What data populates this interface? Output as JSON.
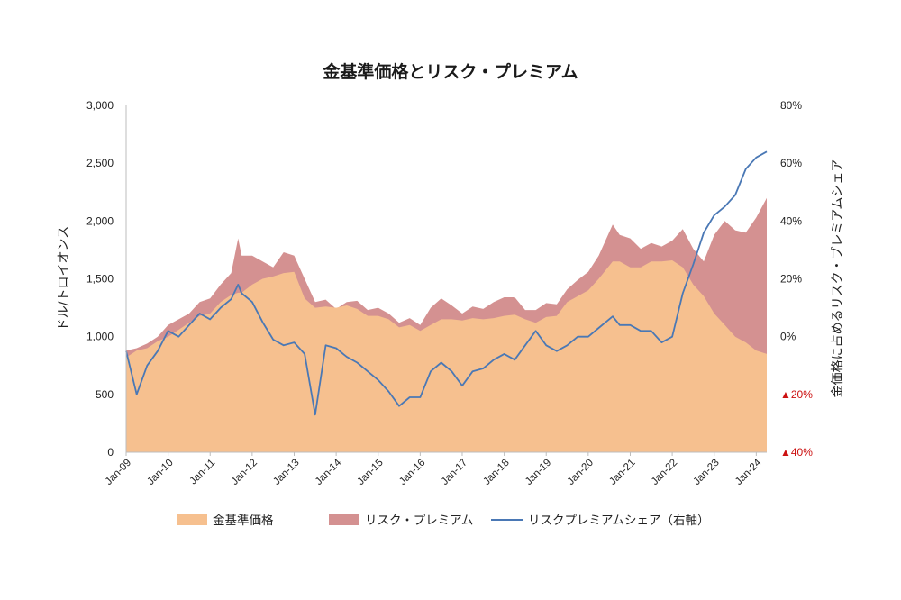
{
  "chart_data": {
    "type": "area",
    "title": "金基準価格とリスク・プレミアム",
    "ylabel_left": "ドル/トロイオンス",
    "ylabel_right": "金価格に占めるリスク・プレミアムシェア",
    "ylim_left": [
      0,
      3000
    ],
    "ylim_right": [
      -0.4,
      0.8
    ],
    "yticks_left": [
      "0",
      "500",
      "1,000",
      "1,500",
      "2,000",
      "2,500",
      "3,000"
    ],
    "yticks_right": [
      {
        "value": -0.4,
        "label": "▲40%",
        "negative": true
      },
      {
        "value": -0.2,
        "label": "▲20%",
        "negative": true
      },
      {
        "value": 0.0,
        "label": "0%",
        "negative": false
      },
      {
        "value": 0.2,
        "label": "20%",
        "negative": false
      },
      {
        "value": 0.4,
        "label": "40%",
        "negative": false
      },
      {
        "value": 0.6,
        "label": "60%",
        "negative": false
      },
      {
        "value": 0.8,
        "label": "80%",
        "negative": false
      }
    ],
    "x_start": "2009-01",
    "x_end": "2024-04",
    "xticks": [
      "Jan-09",
      "Jan-10",
      "Jan-11",
      "Jan-12",
      "Jan-13",
      "Jan-14",
      "Jan-15",
      "Jan-16",
      "Jan-17",
      "Jan-18",
      "Jan-19",
      "Jan-20",
      "Jan-21",
      "Jan-22",
      "Jan-23",
      "Jan-24"
    ],
    "grid": false,
    "legend_position": "bottom",
    "colors": {
      "base": "#f6c08f",
      "premium": "#d49191",
      "share_line": "#4a78b5"
    },
    "x": [
      "2009-01",
      "2009-04",
      "2009-07",
      "2009-10",
      "2010-01",
      "2010-04",
      "2010-07",
      "2010-10",
      "2011-01",
      "2011-04",
      "2011-07",
      "2011-09",
      "2011-10",
      "2012-01",
      "2012-04",
      "2012-07",
      "2012-10",
      "2013-01",
      "2013-04",
      "2013-07",
      "2013-10",
      "2014-01",
      "2014-04",
      "2014-07",
      "2014-10",
      "2015-01",
      "2015-04",
      "2015-07",
      "2015-10",
      "2016-01",
      "2016-04",
      "2016-07",
      "2016-10",
      "2017-01",
      "2017-04",
      "2017-07",
      "2017-10",
      "2018-01",
      "2018-04",
      "2018-07",
      "2018-10",
      "2019-01",
      "2019-04",
      "2019-07",
      "2019-10",
      "2020-01",
      "2020-04",
      "2020-08",
      "2020-10",
      "2021-01",
      "2021-04",
      "2021-07",
      "2021-10",
      "2022-01",
      "2022-04",
      "2022-07",
      "2022-10",
      "2023-01",
      "2023-04",
      "2023-07",
      "2023-10",
      "2024-01",
      "2024-04"
    ],
    "series": [
      {
        "name": "金基準価格",
        "kind": "area",
        "axis": "left",
        "values": [
          820,
          880,
          900,
          960,
          1000,
          1060,
          1120,
          1180,
          1200,
          1300,
          1360,
          1380,
          1380,
          1450,
          1500,
          1520,
          1550,
          1560,
          1330,
          1250,
          1260,
          1250,
          1270,
          1240,
          1180,
          1180,
          1150,
          1080,
          1100,
          1050,
          1100,
          1150,
          1150,
          1140,
          1160,
          1150,
          1160,
          1180,
          1190,
          1150,
          1120,
          1170,
          1180,
          1300,
          1350,
          1400,
          1500,
          1650,
          1650,
          1600,
          1600,
          1650,
          1650,
          1660,
          1600,
          1450,
          1350,
          1200,
          1100,
          1000,
          950,
          880,
          850
        ]
      },
      {
        "name": "リスク・プレミアム",
        "kind": "area",
        "axis": "left",
        "values": [
          880,
          900,
          940,
          1000,
          1100,
          1150,
          1200,
          1300,
          1330,
          1450,
          1550,
          1850,
          1700,
          1700,
          1650,
          1600,
          1730,
          1700,
          1500,
          1300,
          1320,
          1240,
          1300,
          1310,
          1230,
          1250,
          1200,
          1120,
          1160,
          1100,
          1250,
          1330,
          1270,
          1200,
          1260,
          1240,
          1300,
          1340,
          1340,
          1230,
          1230,
          1290,
          1280,
          1410,
          1490,
          1560,
          1700,
          1970,
          1880,
          1850,
          1760,
          1810,
          1780,
          1830,
          1930,
          1760,
          1650,
          1880,
          2000,
          1920,
          1900,
          2030,
          2200
        ]
      },
      {
        "name": "リスクプレミアムシェア（右軸）",
        "kind": "line",
        "axis": "right",
        "values": [
          -0.05,
          -0.2,
          -0.1,
          -0.05,
          0.02,
          0.0,
          0.04,
          0.08,
          0.06,
          0.1,
          0.13,
          0.18,
          0.15,
          0.12,
          0.05,
          -0.01,
          -0.03,
          -0.02,
          -0.06,
          -0.27,
          -0.03,
          -0.04,
          -0.07,
          -0.09,
          -0.12,
          -0.15,
          -0.19,
          -0.24,
          -0.21,
          -0.21,
          -0.12,
          -0.09,
          -0.12,
          -0.17,
          -0.12,
          -0.11,
          -0.08,
          -0.06,
          -0.08,
          -0.03,
          0.02,
          -0.03,
          -0.05,
          -0.03,
          0.0,
          0.0,
          0.03,
          0.07,
          0.04,
          0.04,
          0.02,
          0.02,
          -0.02,
          0.0,
          0.15,
          0.25,
          0.36,
          0.42,
          0.45,
          0.49,
          0.58,
          0.62,
          0.64
        ]
      }
    ]
  }
}
